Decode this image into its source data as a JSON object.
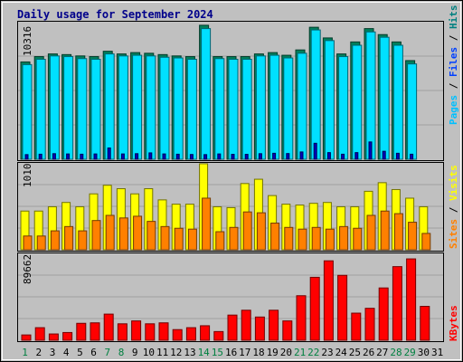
{
  "chart_data": {
    "type": "bar",
    "title": "Daily usage for September 2024",
    "days": [
      "1",
      "2",
      "3",
      "4",
      "5",
      "6",
      "7",
      "8",
      "9",
      "10",
      "11",
      "12",
      "13",
      "14",
      "15",
      "16",
      "17",
      "18",
      "19",
      "20",
      "21",
      "22",
      "23",
      "24",
      "25",
      "26",
      "27",
      "28",
      "29",
      "30",
      "31"
    ],
    "weekend_days": [
      1,
      7,
      8,
      14,
      15,
      21,
      22,
      28,
      29
    ],
    "panels": [
      {
        "id": "hits",
        "ymax_label": "10316",
        "ymax": 10316,
        "ylim": [
          0,
          10316
        ],
        "legend": [
          {
            "text": "Pages",
            "color": "#00c0ff"
          },
          {
            "text": "Files",
            "color": "#0040ff"
          },
          {
            "text": "Hits",
            "color": "#008080"
          }
        ],
        "series": [
          {
            "name": "Hits",
            "color": "#00805c",
            "values": [
              7300,
              7700,
              7900,
              7850,
              7750,
              7700,
              8100,
              7900,
              8000,
              7950,
              7850,
              7750,
              7700,
              10050,
              7700,
              7700,
              7700,
              7900,
              8000,
              7800,
              8200,
              9900,
              9100,
              7900,
              8800,
              9800,
              9350,
              8800,
              7400,
              0,
              0
            ]
          },
          {
            "name": "Files",
            "color": "#00e0ff",
            "values": [
              7100,
              7500,
              7750,
              7700,
              7550,
              7500,
              7900,
              7750,
              7800,
              7750,
              7650,
              7600,
              7500,
              9800,
              7550,
              7500,
              7500,
              7750,
              7800,
              7600,
              7950,
              9700,
              8900,
              7700,
              8550,
              9550,
              9150,
              8550,
              7150,
              0,
              0
            ]
          },
          {
            "name": "Pages",
            "color": "#0000c0",
            "values": [
              350,
              380,
              420,
              400,
              380,
              400,
              850,
              400,
              420,
              480,
              400,
              380,
              360,
              350,
              400,
              370,
              370,
              420,
              450,
              430,
              550,
              1200,
              500,
              380,
              500,
              1300,
              600,
              450,
              380,
              0,
              0
            ]
          }
        ]
      },
      {
        "id": "visits",
        "ymax_label": "1010",
        "ymax": 1010,
        "ylim": [
          0,
          1010
        ],
        "legend": [
          {
            "text": "Sites",
            "color": "#ff8000"
          },
          {
            "text": "Visits",
            "color": "#ffff00"
          }
        ],
        "series": [
          {
            "name": "Visits",
            "color": "#ffff00",
            "values": [
              450,
              450,
              500,
              550,
              500,
              650,
              750,
              710,
              650,
              710,
              580,
              530,
              530,
              1000,
              500,
              490,
              770,
              820,
              630,
              530,
              520,
              540,
              550,
              500,
              500,
              680,
              780,
              700,
              600,
              500,
              0
            ]
          },
          {
            "name": "Sites",
            "color": "#ff8000",
            "values": [
              160,
              160,
              220,
              270,
              220,
              340,
              400,
              370,
              390,
              330,
              270,
              250,
              240,
              600,
              210,
              260,
              440,
              430,
              310,
              260,
              240,
              260,
              240,
              270,
              250,
              400,
              450,
              420,
              320,
              190,
              0
            ]
          }
        ]
      },
      {
        "id": "kbytes",
        "ymax_label": "89662",
        "ymax": 89662,
        "ylim": [
          0,
          89662
        ],
        "legend": [
          {
            "text": "KBytes",
            "color": "#ff0000"
          }
        ],
        "series": [
          {
            "name": "KBytes",
            "color": "#ff0000",
            "values": [
              5500,
              13000,
              6500,
              8000,
              17500,
              18000,
              27000,
              17000,
              20000,
              17000,
              18000,
              11000,
              13000,
              15000,
              9000,
              26000,
              31000,
              24000,
              31000,
              20000,
              46000,
              65000,
              82000,
              67000,
              28000,
              33000,
              54000,
              76000,
              84000,
              35000,
              0
            ]
          }
        ]
      }
    ]
  }
}
